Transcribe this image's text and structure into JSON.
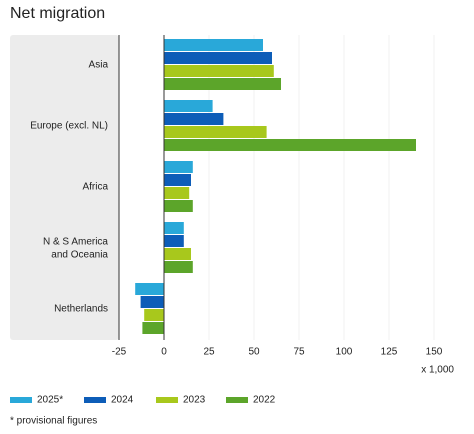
{
  "chart_data": {
    "type": "hbar",
    "title": "Net migration",
    "categories": [
      "Asia",
      "Europe (excl. NL)",
      "Africa",
      "N & S America\nand Oceania",
      "Netherlands"
    ],
    "series": [
      {
        "name": "2025*",
        "color": "#29a8d9",
        "values": [
          55,
          27,
          16,
          11,
          -16
        ]
      },
      {
        "name": "2024",
        "color": "#0d5db8",
        "values": [
          60,
          33,
          15,
          11,
          -13
        ]
      },
      {
        "name": "2023",
        "color": "#a8c81c",
        "values": [
          61,
          57,
          14,
          15,
          -11
        ]
      },
      {
        "name": "2022",
        "color": "#5ca52a",
        "values": [
          65,
          140,
          16,
          16,
          -12
        ]
      }
    ],
    "xlim": [
      -25,
      150
    ],
    "xticks": [
      -25,
      0,
      25,
      50,
      75,
      100,
      125,
      150
    ],
    "xlabel": "x 1,000",
    "note": "* provisional figures",
    "legend": "bottom"
  }
}
